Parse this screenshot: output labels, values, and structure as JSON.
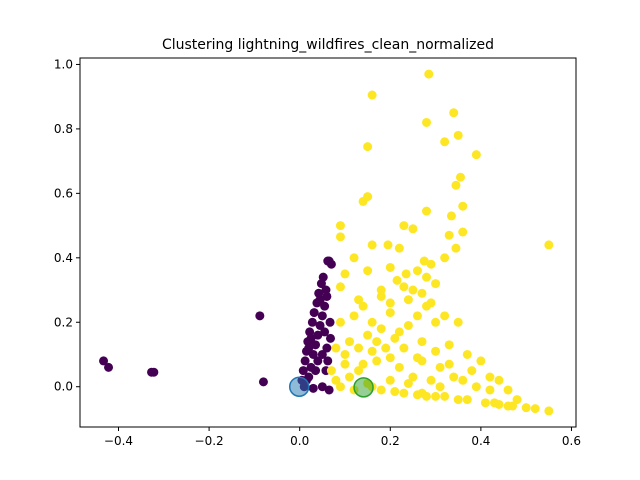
{
  "chart_data": {
    "type": "scatter",
    "title": "Clustering lightning_wildfires_clean_normalized",
    "xlabel": "",
    "ylabel": "",
    "xlim": [
      -0.485,
      0.61
    ],
    "ylim": [
      -0.125,
      1.02
    ],
    "x_ticks": [
      -0.4,
      -0.2,
      0.0,
      0.2,
      0.4,
      0.6
    ],
    "y_ticks": [
      0.0,
      0.2,
      0.4,
      0.6,
      0.8,
      1.0
    ],
    "x_tick_labels": [
      "−0.4",
      "−0.2",
      "0.0",
      "0.2",
      "0.4",
      "0.6"
    ],
    "y_tick_labels": [
      "0.0",
      "0.2",
      "0.4",
      "0.6",
      "0.8",
      "1.0"
    ],
    "grid": false,
    "colors": {
      "cluster_0": "#440154",
      "cluster_1": "#fde725",
      "centroid_0": "#1f77b4",
      "centroid_1": "#2ca02c"
    },
    "series": [
      {
        "color": "#440154",
        "points": [
          [
            -0.433,
            0.08
          ],
          [
            -0.422,
            0.06
          ],
          [
            -0.327,
            0.045
          ],
          [
            -0.322,
            0.045
          ],
          [
            -0.088,
            0.22
          ],
          [
            -0.08,
            0.015
          ],
          [
            0.005,
            0.02
          ],
          [
            0.008,
            0.05
          ],
          [
            0.012,
            0.08
          ],
          [
            0.015,
            0.11
          ],
          [
            0.018,
            0.14
          ],
          [
            0.02,
            0.03
          ],
          [
            0.022,
            0.17
          ],
          [
            0.025,
            0.06
          ],
          [
            0.028,
            0.2
          ],
          [
            0.03,
            0.1
          ],
          [
            0.032,
            0.23
          ],
          [
            0.035,
            0.13
          ],
          [
            0.038,
            0.26
          ],
          [
            0.04,
            0.16
          ],
          [
            0.042,
            0.29
          ],
          [
            0.045,
            0.19
          ],
          [
            0.048,
            0.32
          ],
          [
            0.05,
            0.22
          ],
          [
            0.052,
            0.34
          ],
          [
            0.055,
            0.25
          ],
          [
            0.058,
            0.05
          ],
          [
            0.06,
            0.28
          ],
          [
            0.062,
            0.39
          ],
          [
            0.065,
            0.39
          ],
          [
            0.068,
            0.15
          ],
          [
            0.07,
            0.38
          ],
          [
            0.01,
            0.0
          ],
          [
            0.03,
            -0.005
          ],
          [
            0.05,
            0.0
          ],
          [
            0.065,
            -0.01
          ],
          [
            0.02,
            0.12
          ],
          [
            0.04,
            0.08
          ],
          [
            0.06,
            0.12
          ],
          [
            0.035,
            0.05
          ],
          [
            0.055,
            0.17
          ],
          [
            0.045,
            0.27
          ],
          [
            0.067,
            0.2
          ],
          [
            0.058,
            0.3
          ],
          [
            0.025,
            0.15
          ],
          [
            0.015,
            0.02
          ],
          [
            0.062,
            0.08
          ],
          [
            0.05,
            0.1
          ]
        ]
      },
      {
        "color": "#fde725",
        "points": [
          [
            0.285,
            0.97
          ],
          [
            0.16,
            0.905
          ],
          [
            0.34,
            0.85
          ],
          [
            0.28,
            0.82
          ],
          [
            0.35,
            0.78
          ],
          [
            0.15,
            0.745
          ],
          [
            0.32,
            0.76
          ],
          [
            0.39,
            0.72
          ],
          [
            0.355,
            0.65
          ],
          [
            0.345,
            0.625
          ],
          [
            0.15,
            0.59
          ],
          [
            0.14,
            0.575
          ],
          [
            0.36,
            0.56
          ],
          [
            0.28,
            0.545
          ],
          [
            0.335,
            0.53
          ],
          [
            0.55,
            0.44
          ],
          [
            0.09,
            0.5
          ],
          [
            0.23,
            0.5
          ],
          [
            0.09,
            0.465
          ],
          [
            0.16,
            0.44
          ],
          [
            0.33,
            0.47
          ],
          [
            0.25,
            0.49
          ],
          [
            0.195,
            0.44
          ],
          [
            0.22,
            0.43
          ],
          [
            0.345,
            0.43
          ],
          [
            0.36,
            0.48
          ],
          [
            0.32,
            0.4
          ],
          [
            0.275,
            0.39
          ],
          [
            0.26,
            0.36
          ],
          [
            0.2,
            0.37
          ],
          [
            0.15,
            0.36
          ],
          [
            0.1,
            0.35
          ],
          [
            0.12,
            0.4
          ],
          [
            0.215,
            0.33
          ],
          [
            0.235,
            0.35
          ],
          [
            0.29,
            0.38
          ],
          [
            0.3,
            0.32
          ],
          [
            0.18,
            0.3
          ],
          [
            0.13,
            0.27
          ],
          [
            0.09,
            0.31
          ],
          [
            0.25,
            0.3
          ],
          [
            0.27,
            0.29
          ],
          [
            0.2,
            0.26
          ],
          [
            0.32,
            0.22
          ],
          [
            0.28,
            0.25
          ],
          [
            0.35,
            0.2
          ],
          [
            0.3,
            0.2
          ],
          [
            0.24,
            0.19
          ],
          [
            0.18,
            0.18
          ],
          [
            0.12,
            0.22
          ],
          [
            0.09,
            0.2
          ],
          [
            0.15,
            0.16
          ],
          [
            0.21,
            0.15
          ],
          [
            0.27,
            0.14
          ],
          [
            0.33,
            0.13
          ],
          [
            0.37,
            0.1
          ],
          [
            0.4,
            0.08
          ],
          [
            0.31,
            0.06
          ],
          [
            0.26,
            0.09
          ],
          [
            0.22,
            0.06
          ],
          [
            0.17,
            0.08
          ],
          [
            0.13,
            0.05
          ],
          [
            0.1,
            0.1
          ],
          [
            0.08,
            0.12
          ],
          [
            0.11,
            0.14
          ],
          [
            0.19,
            0.12
          ],
          [
            0.25,
            0.03
          ],
          [
            0.29,
            0.02
          ],
          [
            0.34,
            0.03
          ],
          [
            0.39,
            0.0
          ],
          [
            0.42,
            -0.01
          ],
          [
            0.36,
            0.02
          ],
          [
            0.31,
            0.0
          ],
          [
            0.27,
            -0.02
          ],
          [
            0.24,
            0.01
          ],
          [
            0.2,
            0.02
          ],
          [
            0.15,
            0.01
          ],
          [
            0.11,
            0.03
          ],
          [
            0.08,
            0.02
          ],
          [
            0.07,
            0.05
          ],
          [
            0.09,
            0.0
          ],
          [
            0.12,
            -0.01
          ],
          [
            0.18,
            -0.01
          ],
          [
            0.23,
            -0.02
          ],
          [
            0.28,
            -0.03
          ],
          [
            0.32,
            -0.03
          ],
          [
            0.37,
            -0.04
          ],
          [
            0.41,
            -0.05
          ],
          [
            0.44,
            -0.055
          ],
          [
            0.47,
            -0.06
          ],
          [
            0.5,
            -0.065
          ],
          [
            0.52,
            -0.068
          ],
          [
            0.55,
            -0.075
          ],
          [
            0.46,
            -0.06
          ],
          [
            0.43,
            -0.05
          ],
          [
            0.35,
            -0.04
          ],
          [
            0.3,
            -0.03
          ],
          [
            0.26,
            -0.025
          ],
          [
            0.21,
            -0.015
          ],
          [
            0.16,
            0.0
          ],
          [
            0.14,
            0.07
          ],
          [
            0.16,
            0.11
          ],
          [
            0.2,
            0.09
          ],
          [
            0.23,
            0.12
          ],
          [
            0.27,
            0.08
          ],
          [
            0.3,
            0.11
          ],
          [
            0.33,
            0.07
          ],
          [
            0.38,
            0.05
          ],
          [
            0.42,
            0.03
          ],
          [
            0.44,
            0.02
          ],
          [
            0.46,
            -0.01
          ],
          [
            0.48,
            -0.04
          ],
          [
            0.1,
            0.07
          ],
          [
            0.13,
            0.12
          ],
          [
            0.17,
            0.14
          ],
          [
            0.22,
            0.17
          ],
          [
            0.26,
            0.22
          ],
          [
            0.29,
            0.26
          ],
          [
            0.24,
            0.27
          ],
          [
            0.2,
            0.23
          ],
          [
            0.16,
            0.2
          ],
          [
            0.14,
            0.25
          ],
          [
            0.18,
            0.28
          ],
          [
            0.23,
            0.31
          ],
          [
            0.28,
            0.34
          ]
        ]
      }
    ],
    "centroids": [
      {
        "x": -0.001,
        "y": 0.0,
        "color": "#1f77b4"
      },
      {
        "x": 0.141,
        "y": -0.002,
        "color": "#2ca02c"
      }
    ]
  }
}
